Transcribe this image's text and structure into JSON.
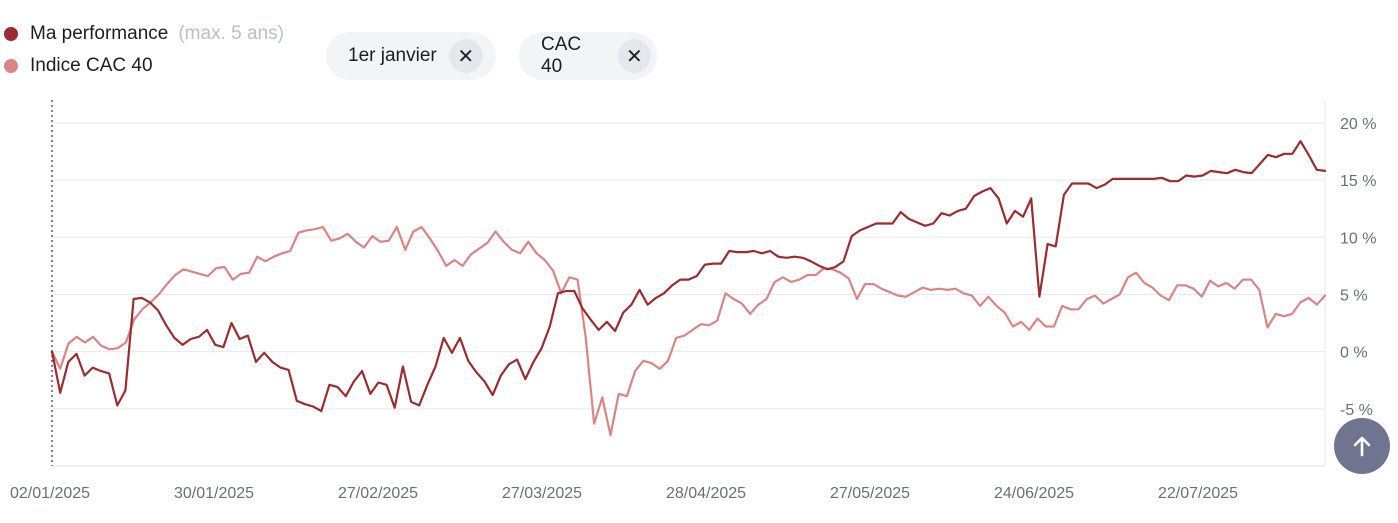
{
  "legend": {
    "items": [
      {
        "label": "Ma performance",
        "note": "(max. 5 ans)",
        "color": "#9b2c2f"
      },
      {
        "label": "Indice CAC 40",
        "note": "",
        "color": "#d98586"
      }
    ]
  },
  "chips": [
    {
      "label": "1er janvier",
      "close_icon": "close-icon"
    },
    {
      "label": "CAC 40",
      "close_icon": "close-icon"
    }
  ],
  "scroll_top": {
    "icon": "arrow-up-icon"
  },
  "chart_data": {
    "type": "line",
    "x_ticks": [
      "02/01/2025",
      "30/01/2025",
      "27/02/2025",
      "27/03/2025",
      "28/04/2025",
      "27/05/2025",
      "24/06/2025",
      "22/07/2025"
    ],
    "y_ticks": [
      "20 %",
      "15 %",
      "10 %",
      "5 %",
      "0 %",
      "-5 %"
    ],
    "ylim": [
      -10,
      22
    ],
    "y_grid": [
      20,
      15,
      10,
      5,
      0,
      -5,
      -10
    ],
    "grid": true,
    "legend_position": "top-left",
    "series": [
      {
        "name": "Ma performance",
        "color": "#9b2c2f",
        "values": [
          0,
          -3.6,
          -0.9,
          -0.2,
          -2.1,
          -1.4,
          -1.7,
          -1.9,
          -4.7,
          -3.4,
          4.6,
          4.7,
          4.3,
          3.6,
          2.3,
          1.2,
          0.6,
          1.1,
          1.3,
          1.9,
          0.6,
          0.4,
          2.5,
          1.1,
          1.4,
          -0.9,
          -0.1,
          -0.9,
          -1.4,
          -1.6,
          -4.3,
          -4.6,
          -4.8,
          -5.2,
          -2.9,
          -3.1,
          -3.9,
          -2.6,
          -1.7,
          -3.7,
          -2.7,
          -2.9,
          -4.9,
          -1.3,
          -4.4,
          -4.7,
          -2.9,
          -1.3,
          1.2,
          -0.1,
          1.2,
          -0.8,
          -1.8,
          -2.6,
          -3.8,
          -2.1,
          -1.1,
          -0.7,
          -2.4,
          -0.9,
          0.3,
          2.2,
          5.1,
          5.3,
          5.3,
          3.8,
          2.8,
          1.9,
          2.6,
          1.8,
          3.4,
          4.1,
          5.4,
          4.1,
          4.7,
          5.1,
          5.8,
          6.3,
          6.3,
          6.6,
          7.6,
          7.7,
          7.7,
          8.8,
          8.7,
          8.7,
          8.8,
          8.6,
          8.8,
          8.3,
          8.2,
          8.3,
          8.2,
          7.9,
          7.5,
          7.2,
          7.4,
          7.9,
          10.1,
          10.6,
          10.9,
          11.2,
          11.2,
          11.2,
          12.2,
          11.6,
          11.3,
          11.0,
          11.2,
          12.1,
          11.9,
          12.3,
          12.5,
          13.6,
          14.0,
          14.3,
          13.4,
          11.2,
          12.3,
          11.8,
          13.4,
          4.8,
          9.4,
          9.2,
          13.7,
          14.7,
          14.7,
          14.7,
          14.3,
          14.6,
          15.1,
          15.1,
          15.1,
          15.1,
          15.1,
          15.1,
          15.2,
          14.9,
          14.9,
          15.4,
          15.3,
          15.4,
          15.8,
          15.7,
          15.6,
          15.9,
          15.7,
          15.6,
          16.4,
          17.2,
          17.0,
          17.3,
          17.3,
          18.4,
          17.2,
          15.9,
          15.8
        ]
      },
      {
        "name": "Indice CAC 40",
        "color": "#d98586",
        "values": [
          0,
          -1.5,
          0.7,
          1.3,
          0.8,
          1.3,
          0.5,
          0.2,
          0.3,
          0.8,
          2.8,
          3.7,
          4.3,
          5.0,
          5.9,
          6.7,
          7.2,
          7.0,
          6.8,
          6.6,
          7.3,
          7.4,
          6.3,
          6.8,
          6.9,
          8.3,
          7.9,
          8.3,
          8.6,
          8.8,
          10.4,
          10.6,
          10.7,
          10.9,
          9.7,
          9.9,
          10.3,
          9.6,
          9.1,
          10.1,
          9.6,
          9.7,
          10.9,
          8.9,
          10.5,
          10.9,
          9.9,
          8.8,
          7.5,
          8.0,
          7.5,
          8.5,
          9.0,
          9.5,
          10.5,
          9.6,
          8.9,
          8.6,
          9.6,
          8.6,
          8.0,
          7.1,
          5.1,
          6.5,
          6.3,
          1.2,
          -6.3,
          -4.0,
          -7.3,
          -3.7,
          -3.9,
          -1.7,
          -0.8,
          -1.0,
          -1.5,
          -0.8,
          1.2,
          1.4,
          1.9,
          2.4,
          2.3,
          2.7,
          5.1,
          4.6,
          4.2,
          3.3,
          4.1,
          4.6,
          6.1,
          6.5,
          6.1,
          6.3,
          6.7,
          6.7,
          7.3,
          7.2,
          6.9,
          6.4,
          4.6,
          5.9,
          5.9,
          5.5,
          5.2,
          4.9,
          4.8,
          5.2,
          5.6,
          5.4,
          5.5,
          5.4,
          5.5,
          5.1,
          4.9,
          4.0,
          4.8,
          4.0,
          3.4,
          2.2,
          2.6,
          1.9,
          2.9,
          2.2,
          2.2,
          4.0,
          3.7,
          3.7,
          4.6,
          4.9,
          4.2,
          4.6,
          5.0,
          6.5,
          6.9,
          6.0,
          5.6,
          4.9,
          4.5,
          5.8,
          5.8,
          5.5,
          4.8,
          6.2,
          5.7,
          6.0,
          5.5,
          6.3,
          6.3,
          5.4,
          2.1,
          3.3,
          3.1,
          3.3,
          4.3,
          4.7,
          4.1,
          4.9
        ]
      }
    ]
  }
}
